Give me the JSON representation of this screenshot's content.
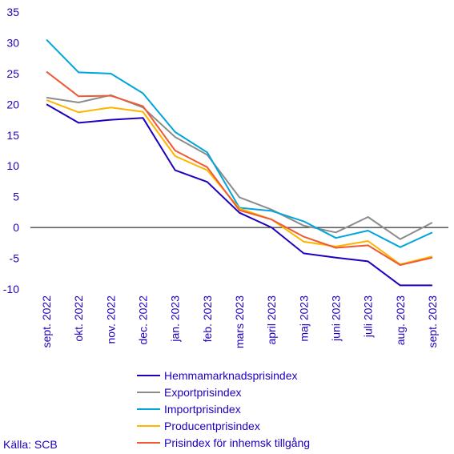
{
  "chart_data": {
    "type": "line",
    "x": [
      "sept. 2022",
      "okt. 2022",
      "nov. 2022",
      "dec. 2022",
      "jan. 2023",
      "feb. 2023",
      "mars 2023",
      "april 2023",
      "maj 2023",
      "juni 2023",
      "juli 2023",
      "aug. 2023",
      "sept. 2023"
    ],
    "ylim": [
      -10,
      35
    ],
    "yticks": [
      35,
      30,
      25,
      20,
      15,
      10,
      5,
      0,
      -5,
      -10
    ],
    "grid": false,
    "legend_position": "bottom",
    "series": [
      {
        "name": "Hemmamarknadsprisindex",
        "color": "#1e00be",
        "values": [
          20.0,
          17.0,
          17.5,
          17.8,
          9.3,
          7.4,
          2.4,
          0.0,
          -4.2,
          -4.9,
          -5.5,
          -9.4,
          -9.4
        ]
      },
      {
        "name": "Exportprisindex",
        "color": "#8c8c8c",
        "values": [
          21.1,
          20.3,
          21.5,
          19.5,
          14.7,
          11.8,
          4.9,
          2.9,
          0.3,
          -0.8,
          1.7,
          -1.9,
          0.8
        ]
      },
      {
        "name": "Importprisindex",
        "color": "#00a5dc",
        "values": [
          30.5,
          25.2,
          25.0,
          21.8,
          15.5,
          12.2,
          3.2,
          2.7,
          1.0,
          -1.7,
          -0.5,
          -3.2,
          -0.8
        ]
      },
      {
        "name": "Producentprisindex",
        "color": "#ffb400",
        "values": [
          20.7,
          18.7,
          19.5,
          18.8,
          11.6,
          9.3,
          3.1,
          1.3,
          -2.3,
          -3.1,
          -2.2,
          -6.0,
          -4.7
        ]
      },
      {
        "name": "Prisindex för inhemsk tillgång",
        "color": "#ee5a34",
        "values": [
          25.3,
          21.3,
          21.4,
          19.7,
          12.5,
          9.8,
          2.8,
          1.3,
          -1.5,
          -3.3,
          -2.9,
          -6.1,
          -4.9
        ]
      }
    ]
  },
  "source": "Källa: SCB"
}
